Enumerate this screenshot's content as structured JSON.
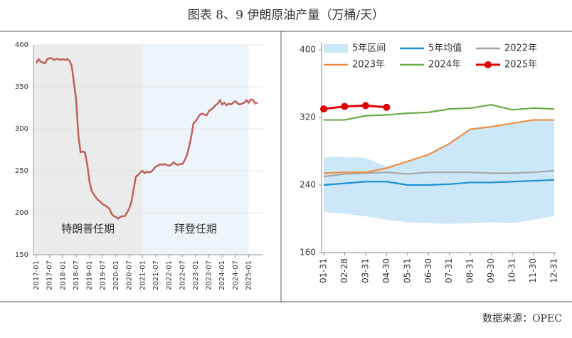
{
  "title": "图表 8、9  伊朗原油产量（万桶/天）",
  "source": "数据来源：OPEC",
  "chart_data": [
    {
      "type": "line",
      "x": [
        "2017-01",
        "2017-02",
        "2017-03",
        "2017-04",
        "2017-05",
        "2017-06",
        "2017-07",
        "2017-08",
        "2017-09",
        "2017-10",
        "2017-11",
        "2017-12",
        "2018-01",
        "2018-02",
        "2018-03",
        "2018-04",
        "2018-05",
        "2018-06",
        "2018-07",
        "2018-08",
        "2018-09",
        "2018-10",
        "2018-11",
        "2018-12",
        "2019-01",
        "2019-02",
        "2019-03",
        "2019-04",
        "2019-05",
        "2019-06",
        "2019-07",
        "2019-08",
        "2019-09",
        "2019-10",
        "2019-11",
        "2019-12",
        "2020-01",
        "2020-02",
        "2020-03",
        "2020-04",
        "2020-05",
        "2020-06",
        "2020-07",
        "2020-08",
        "2020-09",
        "2020-10",
        "2020-11",
        "2020-12",
        "2021-01",
        "2021-02",
        "2021-03",
        "2021-04",
        "2021-05",
        "2021-06",
        "2021-07",
        "2021-08",
        "2021-09",
        "2021-10",
        "2021-11",
        "2021-12",
        "2022-01",
        "2022-02",
        "2022-03",
        "2022-04",
        "2022-05",
        "2022-06",
        "2022-07",
        "2022-08",
        "2022-09",
        "2022-10",
        "2022-11",
        "2022-12",
        "2023-01",
        "2023-02",
        "2023-03",
        "2023-04",
        "2023-05",
        "2023-06",
        "2023-07",
        "2023-08",
        "2023-09",
        "2023-10",
        "2023-11",
        "2023-12",
        "2024-01",
        "2024-02",
        "2024-03",
        "2024-04",
        "2024-05",
        "2024-06",
        "2024-07",
        "2024-08",
        "2024-09",
        "2024-10",
        "2024-11",
        "2024-12",
        "2025-01",
        "2025-02",
        "2025-03",
        "2025-04",
        "2025-05"
      ],
      "values": [
        378,
        383,
        380,
        379,
        378,
        383,
        384,
        384,
        382,
        383,
        383,
        382,
        383,
        382,
        383,
        381,
        375,
        355,
        335,
        293,
        272,
        273,
        272,
        258,
        238,
        226,
        222,
        218,
        215,
        213,
        210,
        209,
        207,
        205,
        199,
        196,
        195,
        193,
        195,
        196,
        196,
        200,
        205,
        213,
        228,
        243,
        245,
        248,
        250,
        247,
        249,
        248,
        249,
        252,
        255,
        256,
        258,
        257,
        258,
        257,
        256,
        257,
        260,
        258,
        257,
        258,
        258,
        262,
        268,
        278,
        290,
        306,
        309,
        313,
        317,
        318,
        317,
        316,
        321,
        323,
        325,
        328,
        330,
        334,
        329,
        331,
        328,
        330,
        329,
        331,
        333,
        330,
        329,
        330,
        331,
        334,
        331,
        335,
        334,
        330,
        331
      ],
      "color": "#c0605a",
      "xticks": [
        "2017-01",
        "2017-07",
        "2018-01",
        "2018-07",
        "2019-01",
        "2019-07",
        "2020-01",
        "2020-07",
        "2021-01",
        "2021-07",
        "2022-01",
        "2022-07",
        "2023-01",
        "2023-07",
        "2024-01",
        "2024-07",
        "2025-01"
      ],
      "ylim": [
        150,
        400
      ],
      "yticks": [
        150,
        200,
        250,
        300,
        350,
        400
      ],
      "grid": true,
      "periods": [
        {
          "name": "特朗普任期",
          "start": "2017-01",
          "end": "2021-01",
          "color": "#ebebeb"
        },
        {
          "name": "拜登任期",
          "start": "2021-01",
          "end": "2025-01",
          "color": "#eef5fa"
        }
      ]
    },
    {
      "type": "line",
      "categories": [
        "01-31",
        "02-28",
        "03-31",
        "04-30",
        "05-31",
        "06-30",
        "07-31",
        "08-31",
        "09-30",
        "10-31",
        "11-30",
        "12-31"
      ],
      "band": {
        "name": "5年区间",
        "color": "#cce8f8",
        "low": [
          208,
          206,
          203,
          199,
          196,
          195,
          194,
          195,
          196,
          195,
          199,
          203
        ],
        "high": [
          273,
          273,
          272,
          262,
          268,
          276,
          289,
          306,
          309,
          313,
          317,
          317
        ]
      },
      "series": [
        {
          "name": "5年均值",
          "color": "#1f8fd6",
          "values": [
            240,
            242,
            244,
            244,
            240,
            240,
            241,
            243,
            243,
            244,
            245,
            246
          ]
        },
        {
          "name": "2022年",
          "color": "#a6a6a6",
          "values": [
            250,
            253,
            254,
            255,
            253,
            255,
            255,
            255,
            254,
            254,
            255,
            257
          ]
        },
        {
          "name": "2023年",
          "color": "#ed8c3f",
          "values": [
            254,
            255,
            255,
            260,
            268,
            276,
            289,
            306,
            309,
            313,
            317,
            317
          ]
        },
        {
          "name": "2024年",
          "color": "#6aab45",
          "values": [
            317,
            317,
            322,
            323,
            325,
            326,
            330,
            331,
            335,
            329,
            331,
            330
          ]
        },
        {
          "name": "2025年",
          "color": "#e00000",
          "values": [
            330,
            333,
            334,
            332,
            null,
            null,
            null,
            null,
            null,
            null,
            null,
            null
          ],
          "markers": true
        }
      ],
      "ylim": [
        160,
        400
      ],
      "yticks": [
        160,
        240,
        320,
        400
      ]
    }
  ]
}
